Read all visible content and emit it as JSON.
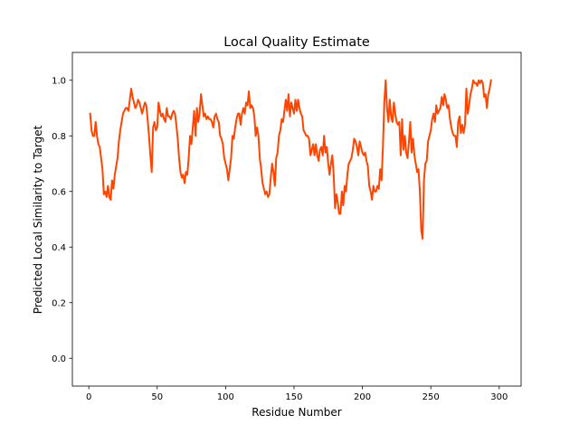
{
  "chart_data": {
    "type": "line",
    "title": "Local Quality Estimate",
    "xlabel": "Residue Number",
    "ylabel": "Predicted Local Similarity to Target",
    "xlim": [
      -12,
      316
    ],
    "ylim": [
      -0.1,
      1.1
    ],
    "xticks": [
      0,
      50,
      100,
      150,
      200,
      250,
      300
    ],
    "yticks": [
      0.0,
      0.2,
      0.4,
      0.6,
      0.8,
      1.0
    ],
    "ytick_labels": [
      "0.0",
      "0.2",
      "0.4",
      "0.6",
      "0.8",
      "1.0"
    ],
    "grid": false,
    "legend": "none",
    "series": [
      {
        "color": "#ff4500",
        "points": [
          [
            1,
            0.88
          ],
          [
            2,
            0.82
          ],
          [
            3,
            0.8
          ],
          [
            4,
            0.8
          ],
          [
            5,
            0.85
          ],
          [
            6,
            0.8
          ],
          [
            7,
            0.77
          ],
          [
            8,
            0.76
          ],
          [
            9,
            0.72
          ],
          [
            10,
            0.68
          ],
          [
            11,
            0.59
          ],
          [
            12,
            0.6
          ],
          [
            13,
            0.58
          ],
          [
            14,
            0.62
          ],
          [
            15,
            0.58
          ],
          [
            16,
            0.57
          ],
          [
            17,
            0.64
          ],
          [
            18,
            0.61
          ],
          [
            19,
            0.66
          ],
          [
            20,
            0.69
          ],
          [
            21,
            0.72
          ],
          [
            22,
            0.78
          ],
          [
            23,
            0.82
          ],
          [
            24,
            0.85
          ],
          [
            25,
            0.88
          ],
          [
            26,
            0.89
          ],
          [
            27,
            0.9
          ],
          [
            28,
            0.9
          ],
          [
            29,
            0.89
          ],
          [
            30,
            0.93
          ],
          [
            31,
            0.97
          ],
          [
            32,
            0.94
          ],
          [
            33,
            0.92
          ],
          [
            34,
            0.9
          ],
          [
            35,
            0.91
          ],
          [
            36,
            0.93
          ],
          [
            37,
            0.92
          ],
          [
            38,
            0.9
          ],
          [
            39,
            0.88
          ],
          [
            40,
            0.9
          ],
          [
            41,
            0.92
          ],
          [
            42,
            0.91
          ],
          [
            43,
            0.86
          ],
          [
            44,
            0.8
          ],
          [
            45,
            0.73
          ],
          [
            46,
            0.67
          ],
          [
            47,
            0.83
          ],
          [
            48,
            0.85
          ],
          [
            49,
            0.82
          ],
          [
            50,
            0.83
          ],
          [
            51,
            0.92
          ],
          [
            52,
            0.89
          ],
          [
            53,
            0.87
          ],
          [
            54,
            0.88
          ],
          [
            55,
            0.86
          ],
          [
            56,
            0.85
          ],
          [
            57,
            0.9
          ],
          [
            58,
            0.87
          ],
          [
            59,
            0.87
          ],
          [
            60,
            0.86
          ],
          [
            61,
            0.88
          ],
          [
            62,
            0.89
          ],
          [
            63,
            0.88
          ],
          [
            64,
            0.84
          ],
          [
            65,
            0.79
          ],
          [
            66,
            0.72
          ],
          [
            67,
            0.67
          ],
          [
            68,
            0.65
          ],
          [
            69,
            0.66
          ],
          [
            70,
            0.63
          ],
          [
            71,
            0.67
          ],
          [
            72,
            0.66
          ],
          [
            73,
            0.72
          ],
          [
            74,
            0.8
          ],
          [
            75,
            0.77
          ],
          [
            76,
            0.83
          ],
          [
            77,
            0.89
          ],
          [
            78,
            0.8
          ],
          [
            79,
            0.9
          ],
          [
            80,
            0.85
          ],
          [
            81,
            0.88
          ],
          [
            82,
            0.95
          ],
          [
            83,
            0.91
          ],
          [
            84,
            0.87
          ],
          [
            85,
            0.88
          ],
          [
            86,
            0.86
          ],
          [
            87,
            0.87
          ],
          [
            88,
            0.86
          ],
          [
            89,
            0.86
          ],
          [
            90,
            0.85
          ],
          [
            91,
            0.83
          ],
          [
            92,
            0.87
          ],
          [
            93,
            0.88
          ],
          [
            94,
            0.86
          ],
          [
            95,
            0.85
          ],
          [
            96,
            0.8
          ],
          [
            97,
            0.79
          ],
          [
            98,
            0.77
          ],
          [
            99,
            0.72
          ],
          [
            100,
            0.7
          ],
          [
            101,
            0.68
          ],
          [
            102,
            0.64
          ],
          [
            103,
            0.68
          ],
          [
            104,
            0.72
          ],
          [
            105,
            0.8
          ],
          [
            106,
            0.79
          ],
          [
            107,
            0.83
          ],
          [
            108,
            0.86
          ],
          [
            109,
            0.88
          ],
          [
            110,
            0.88
          ],
          [
            111,
            0.84
          ],
          [
            112,
            0.88
          ],
          [
            113,
            0.9
          ],
          [
            114,
            0.88
          ],
          [
            115,
            0.92
          ],
          [
            116,
            0.91
          ],
          [
            117,
            0.96
          ],
          [
            118,
            0.9
          ],
          [
            119,
            0.91
          ],
          [
            120,
            0.9
          ],
          [
            121,
            0.87
          ],
          [
            122,
            0.8
          ],
          [
            123,
            0.83
          ],
          [
            124,
            0.8
          ],
          [
            125,
            0.72
          ],
          [
            126,
            0.68
          ],
          [
            127,
            0.63
          ],
          [
            128,
            0.61
          ],
          [
            129,
            0.59
          ],
          [
            130,
            0.6
          ],
          [
            131,
            0.58
          ],
          [
            132,
            0.59
          ],
          [
            133,
            0.65
          ],
          [
            134,
            0.7
          ],
          [
            135,
            0.67
          ],
          [
            136,
            0.62
          ],
          [
            137,
            0.72
          ],
          [
            138,
            0.74
          ],
          [
            139,
            0.8
          ],
          [
            140,
            0.82
          ],
          [
            141,
            0.86
          ],
          [
            142,
            0.85
          ],
          [
            143,
            0.89
          ],
          [
            144,
            0.93
          ],
          [
            145,
            0.89
          ],
          [
            146,
            0.95
          ],
          [
            147,
            0.87
          ],
          [
            148,
            0.92
          ],
          [
            149,
            0.9
          ],
          [
            150,
            0.88
          ],
          [
            151,
            0.93
          ],
          [
            152,
            0.89
          ],
          [
            153,
            0.93
          ],
          [
            154,
            0.9
          ],
          [
            155,
            0.88
          ],
          [
            156,
            0.87
          ],
          [
            157,
            0.82
          ],
          [
            158,
            0.81
          ],
          [
            159,
            0.8
          ],
          [
            160,
            0.8
          ],
          [
            161,
            0.79
          ],
          [
            162,
            0.73
          ],
          [
            163,
            0.75
          ],
          [
            164,
            0.77
          ],
          [
            165,
            0.73
          ],
          [
            166,
            0.77
          ],
          [
            167,
            0.73
          ],
          [
            168,
            0.71
          ],
          [
            169,
            0.75
          ],
          [
            170,
            0.76
          ],
          [
            171,
            0.73
          ],
          [
            172,
            0.8
          ],
          [
            173,
            0.74
          ],
          [
            174,
            0.76
          ],
          [
            175,
            0.7
          ],
          [
            176,
            0.66
          ],
          [
            177,
            0.7
          ],
          [
            178,
            0.73
          ],
          [
            179,
            0.66
          ],
          [
            180,
            0.54
          ],
          [
            181,
            0.59
          ],
          [
            182,
            0.56
          ],
          [
            183,
            0.52
          ],
          [
            184,
            0.52
          ],
          [
            185,
            0.6
          ],
          [
            186,
            0.55
          ],
          [
            187,
            0.62
          ],
          [
            188,
            0.6
          ],
          [
            189,
            0.66
          ],
          [
            190,
            0.7
          ],
          [
            191,
            0.71
          ],
          [
            192,
            0.72
          ],
          [
            193,
            0.75
          ],
          [
            194,
            0.79
          ],
          [
            195,
            0.78
          ],
          [
            196,
            0.76
          ],
          [
            197,
            0.73
          ],
          [
            198,
            0.78
          ],
          [
            199,
            0.76
          ],
          [
            200,
            0.74
          ],
          [
            201,
            0.73
          ],
          [
            202,
            0.74
          ],
          [
            203,
            0.71
          ],
          [
            204,
            0.69
          ],
          [
            205,
            0.62
          ],
          [
            206,
            0.6
          ],
          [
            207,
            0.57
          ],
          [
            208,
            0.62
          ],
          [
            209,
            0.6
          ],
          [
            210,
            0.6
          ],
          [
            211,
            0.62
          ],
          [
            212,
            0.61
          ],
          [
            213,
            0.68
          ],
          [
            214,
            0.64
          ],
          [
            215,
            0.76
          ],
          [
            216,
            0.92
          ],
          [
            217,
            1.0
          ],
          [
            218,
            0.9
          ],
          [
            219,
            0.85
          ],
          [
            220,
            0.93
          ],
          [
            221,
            0.87
          ],
          [
            222,
            0.85
          ],
          [
            223,
            0.92
          ],
          [
            224,
            0.88
          ],
          [
            225,
            0.85
          ],
          [
            226,
            0.84
          ],
          [
            227,
            0.85
          ],
          [
            228,
            0.73
          ],
          [
            229,
            0.86
          ],
          [
            230,
            0.75
          ],
          [
            231,
            0.8
          ],
          [
            232,
            0.74
          ],
          [
            233,
            0.72
          ],
          [
            234,
            0.78
          ],
          [
            235,
            0.85
          ],
          [
            236,
            0.74
          ],
          [
            237,
            0.79
          ],
          [
            238,
            0.73
          ],
          [
            239,
            0.7
          ],
          [
            240,
            0.67
          ],
          [
            241,
            0.68
          ],
          [
            242,
            0.6
          ],
          [
            243,
            0.46
          ],
          [
            244,
            0.43
          ],
          [
            245,
            0.64
          ],
          [
            246,
            0.7
          ],
          [
            247,
            0.71
          ],
          [
            248,
            0.78
          ],
          [
            249,
            0.8
          ],
          [
            250,
            0.82
          ],
          [
            251,
            0.86
          ],
          [
            252,
            0.88
          ],
          [
            253,
            0.85
          ],
          [
            254,
            0.91
          ],
          [
            255,
            0.88
          ],
          [
            256,
            0.89
          ],
          [
            257,
            0.9
          ],
          [
            258,
            0.94
          ],
          [
            259,
            0.91
          ],
          [
            260,
            0.95
          ],
          [
            261,
            0.93
          ],
          [
            262,
            0.9
          ],
          [
            263,
            0.91
          ],
          [
            264,
            0.86
          ],
          [
            265,
            0.83
          ],
          [
            266,
            0.81
          ],
          [
            267,
            0.8
          ],
          [
            268,
            0.8
          ],
          [
            269,
            0.76
          ],
          [
            270,
            0.85
          ],
          [
            271,
            0.87
          ],
          [
            272,
            0.81
          ],
          [
            273,
            0.84
          ],
          [
            274,
            0.81
          ],
          [
            275,
            0.84
          ],
          [
            276,
            0.97
          ],
          [
            277,
            0.88
          ],
          [
            278,
            0.91
          ],
          [
            279,
            0.95
          ],
          [
            280,
            0.97
          ],
          [
            281,
            1.0
          ],
          [
            282,
            0.99
          ],
          [
            283,
            0.99
          ],
          [
            284,
            0.98
          ],
          [
            285,
            1.0
          ],
          [
            286,
            0.99
          ],
          [
            287,
            1.0
          ],
          [
            288,
            0.99
          ],
          [
            289,
            0.94
          ],
          [
            290,
            0.95
          ],
          [
            291,
            0.9
          ],
          [
            292,
            0.95
          ],
          [
            293,
            0.97
          ],
          [
            294,
            1.0
          ]
        ]
      }
    ]
  }
}
